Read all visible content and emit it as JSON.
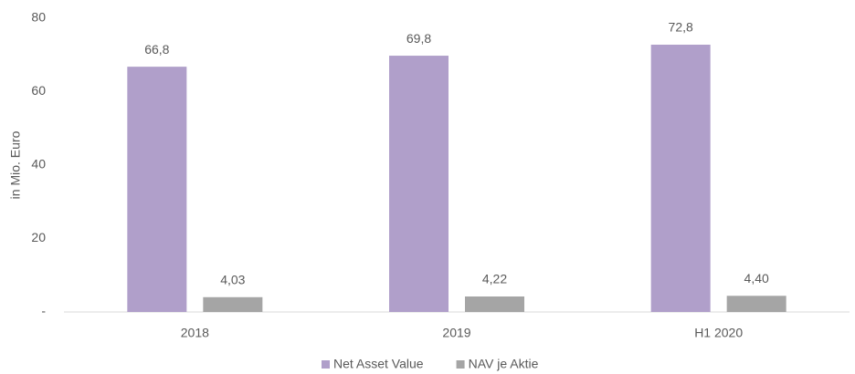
{
  "chart_data": {
    "type": "bar",
    "y_label": "in Mio. Euro",
    "categories": [
      "2018",
      "2019",
      "H1 2020"
    ],
    "series": [
      {
        "name": "Net Asset Value",
        "color": "#b09fca",
        "values": [
          66.8,
          69.8,
          72.8
        ],
        "value_labels": [
          "66,8",
          "69,8",
          "72,8"
        ]
      },
      {
        "name": "NAV je Aktie",
        "color": "#a5a5a5",
        "values": [
          4.03,
          4.22,
          4.4
        ],
        "value_labels": [
          "4,03",
          "4,22",
          "4,40"
        ]
      }
    ],
    "ylim": [
      0,
      80
    ],
    "yticks": [
      {
        "value": 0,
        "label": "-"
      },
      20,
      40,
      60,
      80
    ],
    "grid": false,
    "legend": "bottom"
  }
}
